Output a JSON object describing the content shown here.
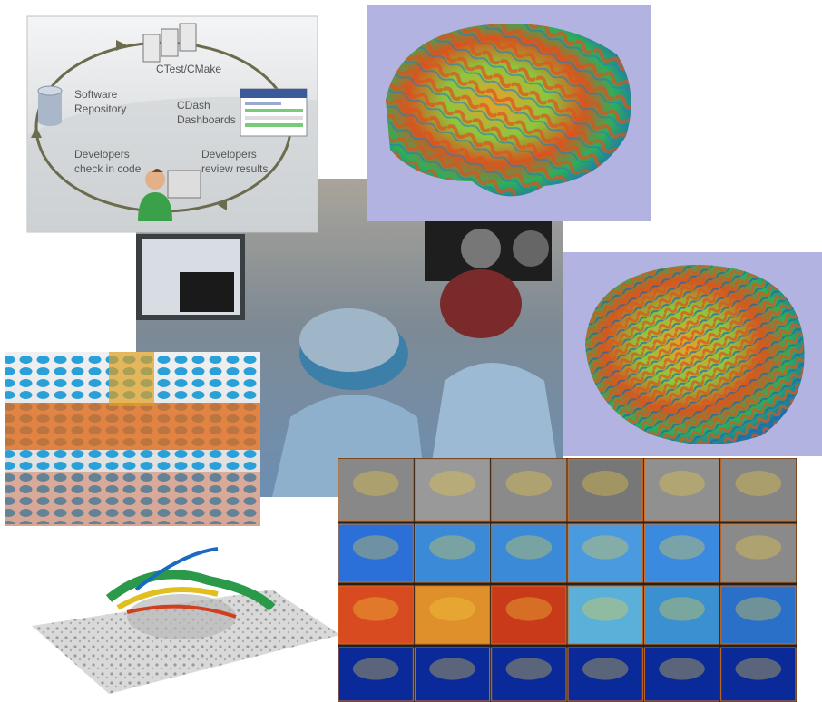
{
  "diagram": {
    "nodes": [
      {
        "lines": [
          "CTest/CMake"
        ]
      },
      {
        "lines": [
          "Software",
          "Repository"
        ]
      },
      {
        "lines": [
          "CDash",
          "Dashboards"
        ]
      },
      {
        "lines": [
          "Developers",
          "check in code"
        ]
      },
      {
        "lines": [
          "Developers",
          "review results"
        ]
      }
    ]
  }
}
